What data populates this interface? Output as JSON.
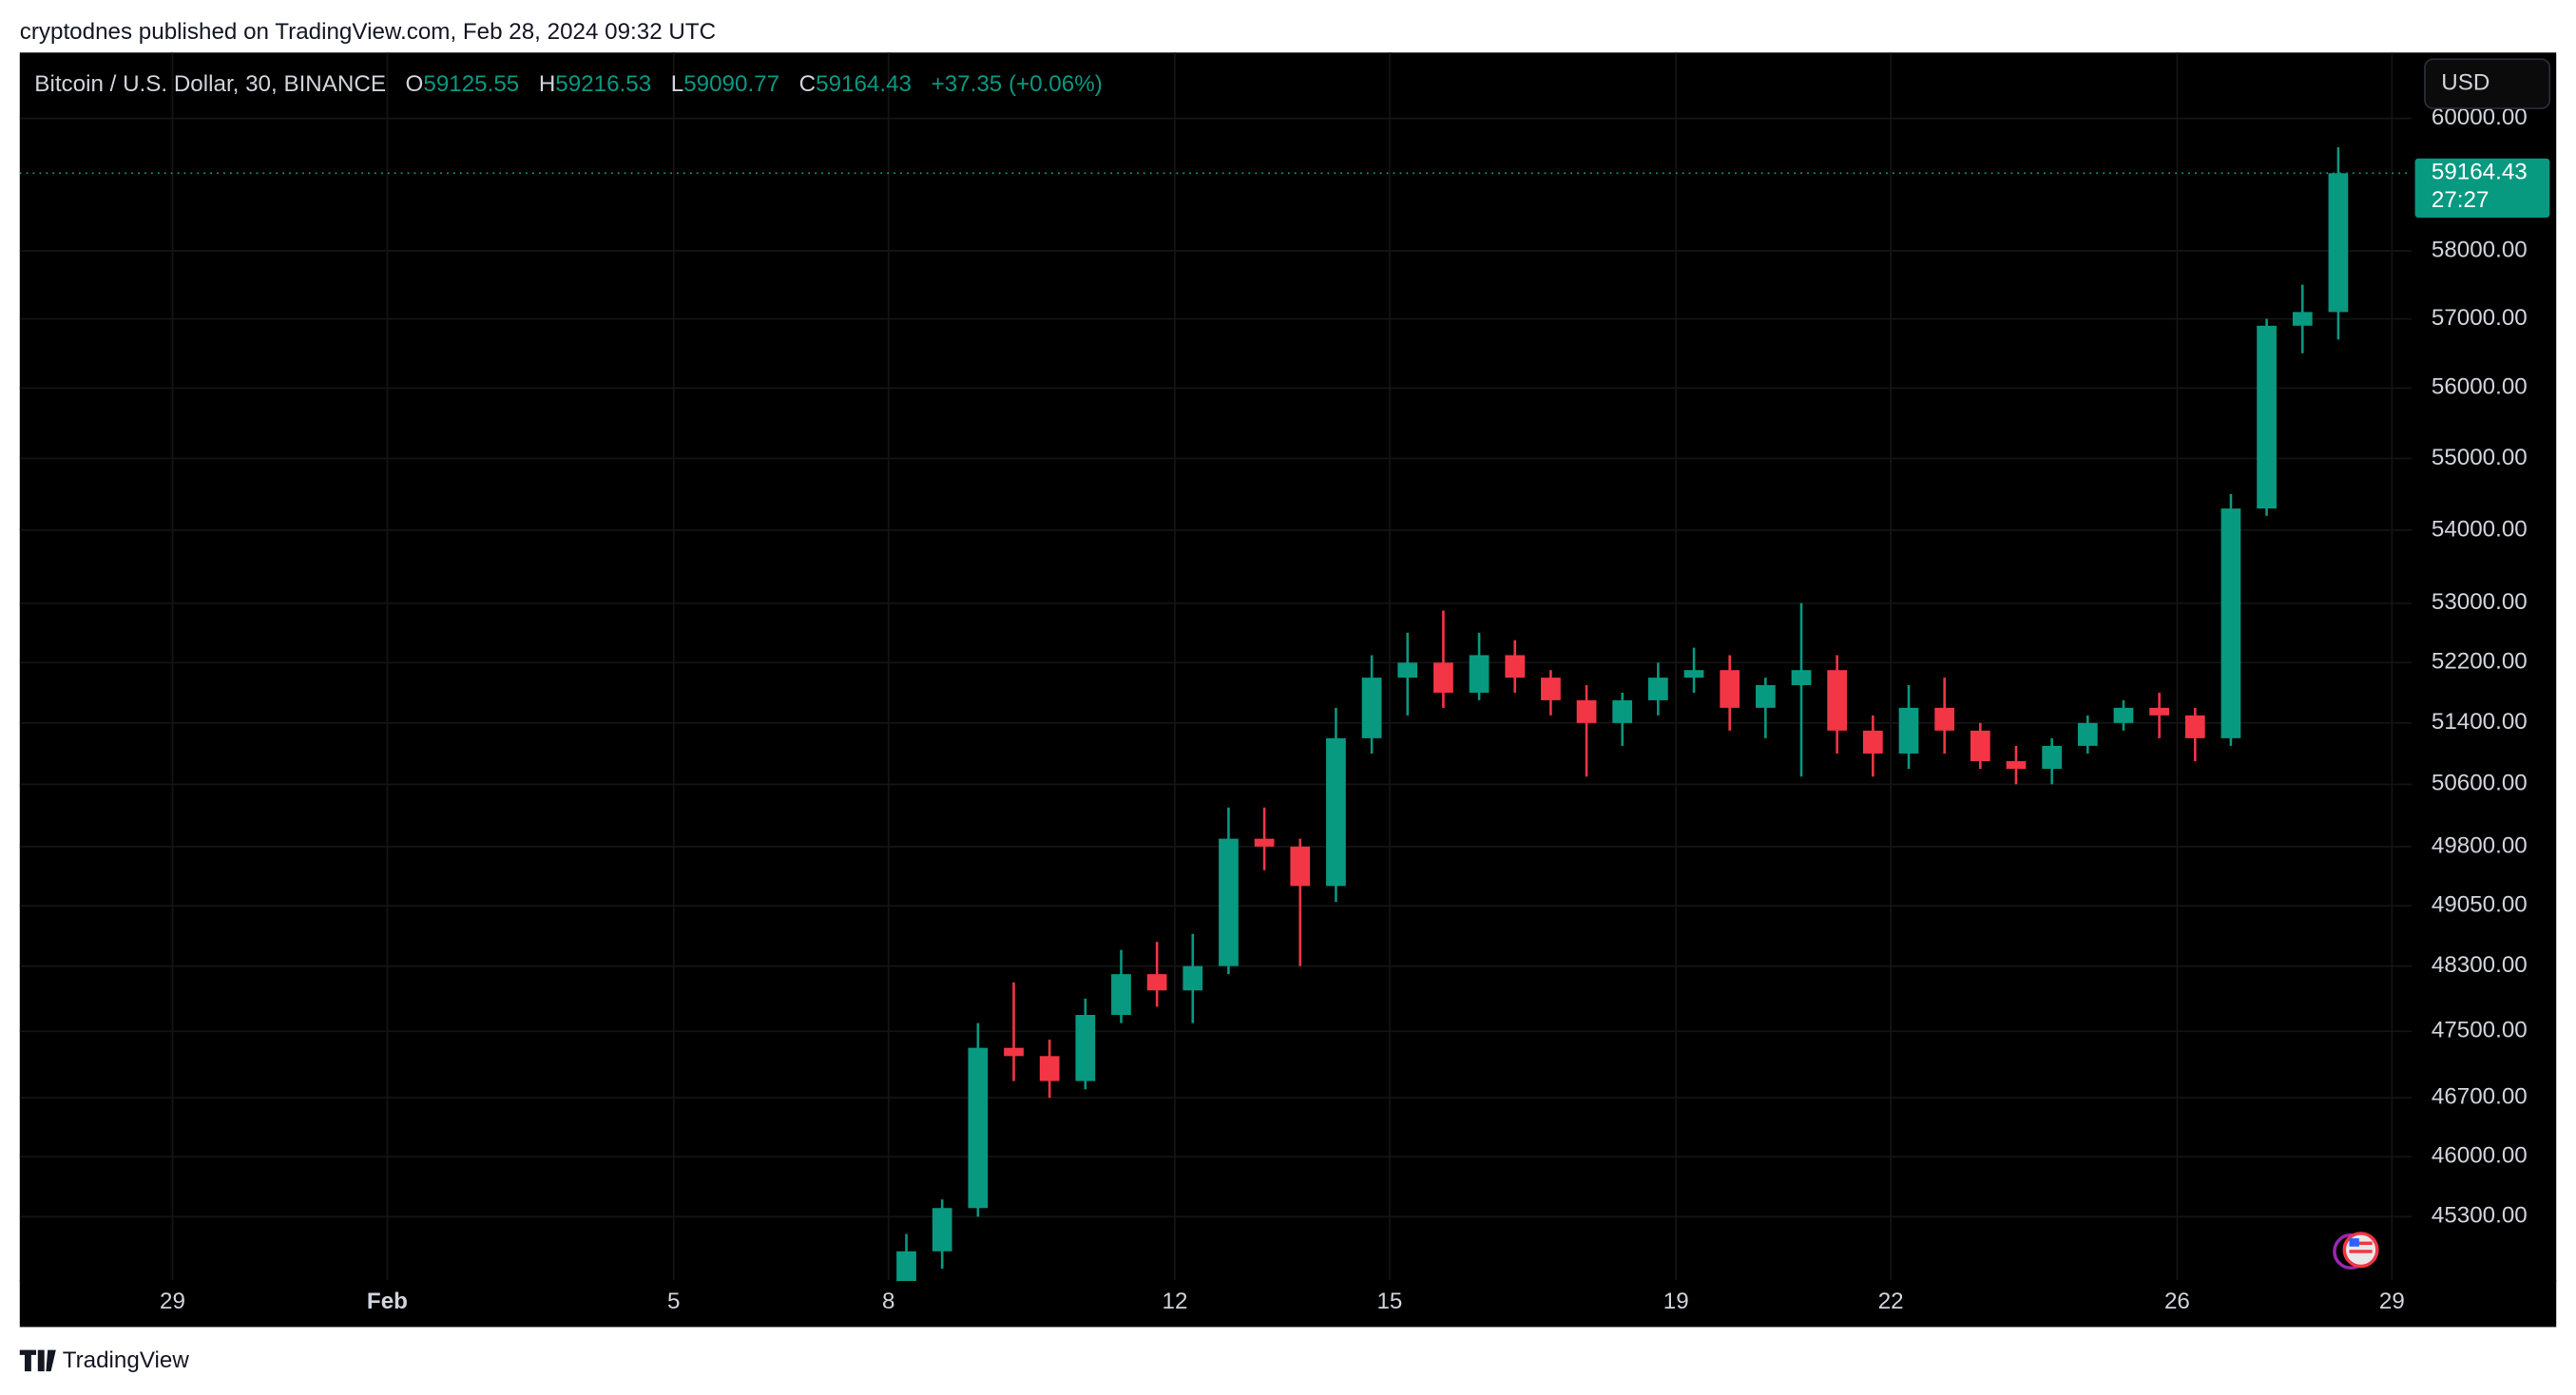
{
  "page": {
    "attribution": "cryptodnes published on TradingView.com, Feb 28, 2024 09:32 UTC",
    "footer_brand": "TradingView",
    "currency_button": "USD"
  },
  "chart_data": {
    "type": "candlestick",
    "symbol": "Bitcoin / U.S. Dollar, 30, BINANCE",
    "legend_ohlc": {
      "open_label": "O",
      "open": 59125.55,
      "high_label": "H",
      "high": 59216.53,
      "low_label": "L",
      "low": 59090.77,
      "close_label": "C",
      "close": 59164.43,
      "change": "+37.35 (+0.06%)"
    },
    "last_price": 59164.43,
    "countdown": "27:27",
    "up_color": "#089981",
    "down_color": "#f23645",
    "grid": true,
    "log_scale": true,
    "categories": [
      "29",
      null,
      null,
      null,
      null,
      null,
      "Feb",
      null,
      null,
      null,
      null,
      null,
      null,
      null,
      "5",
      null,
      null,
      null,
      null,
      null,
      "8",
      null,
      null,
      null,
      null,
      null,
      null,
      null,
      "12",
      null,
      null,
      null,
      null,
      null,
      "15",
      null,
      null,
      null,
      null,
      null,
      null,
      null,
      "19",
      null,
      null,
      null,
      null,
      null,
      "22",
      null,
      null,
      null,
      null,
      null,
      null,
      null,
      "26",
      null,
      null,
      null,
      null,
      null,
      "29"
    ],
    "open": [
      null,
      null,
      null,
      null,
      null,
      null,
      null,
      null,
      null,
      null,
      null,
      null,
      null,
      null,
      null,
      null,
      null,
      null,
      null,
      null,
      44400,
      44900,
      45400,
      47300,
      47200,
      46900,
      47700,
      48200,
      48000,
      48300,
      49900,
      49800,
      49300,
      51200,
      52000,
      52200,
      51800,
      52300,
      52000,
      51700,
      51400,
      51700,
      52000,
      52100,
      51600,
      51900,
      52100,
      51300,
      51000,
      51600,
      51300,
      50900,
      50800,
      51100,
      51400,
      51600,
      51500,
      51200,
      54300,
      56900,
      57100,
      null,
      null
    ],
    "high": [
      null,
      null,
      null,
      null,
      null,
      null,
      null,
      null,
      null,
      null,
      null,
      null,
      null,
      null,
      null,
      null,
      null,
      null,
      null,
      null,
      45100,
      45500,
      47600,
      48100,
      47400,
      47900,
      48500,
      48600,
      48700,
      50300,
      50300,
      49900,
      51600,
      52300,
      52600,
      52900,
      52600,
      52500,
      52100,
      51900,
      51800,
      52200,
      52400,
      52300,
      52000,
      53000,
      52300,
      51500,
      51900,
      52000,
      51400,
      51100,
      51200,
      51500,
      51700,
      51800,
      51600,
      54500,
      57000,
      57500,
      59560,
      null,
      null
    ],
    "low": [
      null,
      null,
      null,
      null,
      null,
      null,
      null,
      null,
      null,
      null,
      null,
      null,
      null,
      null,
      null,
      null,
      null,
      null,
      null,
      null,
      44300,
      44700,
      45300,
      46900,
      46700,
      46800,
      47600,
      47800,
      47600,
      48200,
      49500,
      48300,
      49100,
      51000,
      51500,
      51600,
      51700,
      51800,
      51500,
      50700,
      51100,
      51500,
      51800,
      51300,
      51200,
      50700,
      51000,
      50700,
      50800,
      51000,
      50800,
      50600,
      50600,
      51000,
      51300,
      51200,
      50900,
      51100,
      54200,
      56500,
      56700,
      null,
      null
    ],
    "close": [
      null,
      null,
      null,
      null,
      null,
      null,
      null,
      null,
      null,
      null,
      null,
      null,
      null,
      null,
      null,
      null,
      null,
      null,
      null,
      null,
      44900,
      45400,
      47300,
      47200,
      46900,
      47700,
      48200,
      48000,
      48300,
      49900,
      49800,
      49300,
      51200,
      52000,
      52200,
      51800,
      52300,
      52000,
      51700,
      51400,
      51700,
      52000,
      52100,
      51600,
      51900,
      52100,
      51300,
      51000,
      51600,
      51300,
      50900,
      50800,
      51100,
      51400,
      51600,
      51500,
      51200,
      54300,
      56900,
      57100,
      59164.43,
      null,
      null
    ],
    "ylim": [
      44560,
      61020
    ],
    "yticks": [
      {
        "value": 60000,
        "label": "60000.00"
      },
      {
        "value": 58000,
        "label": "58000.00"
      },
      {
        "value": 57000,
        "label": "57000.00"
      },
      {
        "value": 56000,
        "label": "56000.00"
      },
      {
        "value": 55000,
        "label": "55000.00"
      },
      {
        "value": 54000,
        "label": "54000.00"
      },
      {
        "value": 53000,
        "label": "53000.00"
      },
      {
        "value": 52200,
        "label": "52200.00"
      },
      {
        "value": 51400,
        "label": "51400.00"
      },
      {
        "value": 50600,
        "label": "50600.00"
      },
      {
        "value": 49800,
        "label": "49800.00"
      },
      {
        "value": 49050,
        "label": "49050.00"
      },
      {
        "value": 48300,
        "label": "48300.00"
      },
      {
        "value": 47500,
        "label": "47500.00"
      },
      {
        "value": 46700,
        "label": "46700.00"
      },
      {
        "value": 46000,
        "label": "46000.00"
      },
      {
        "value": 45300,
        "label": "45300.00"
      }
    ]
  }
}
